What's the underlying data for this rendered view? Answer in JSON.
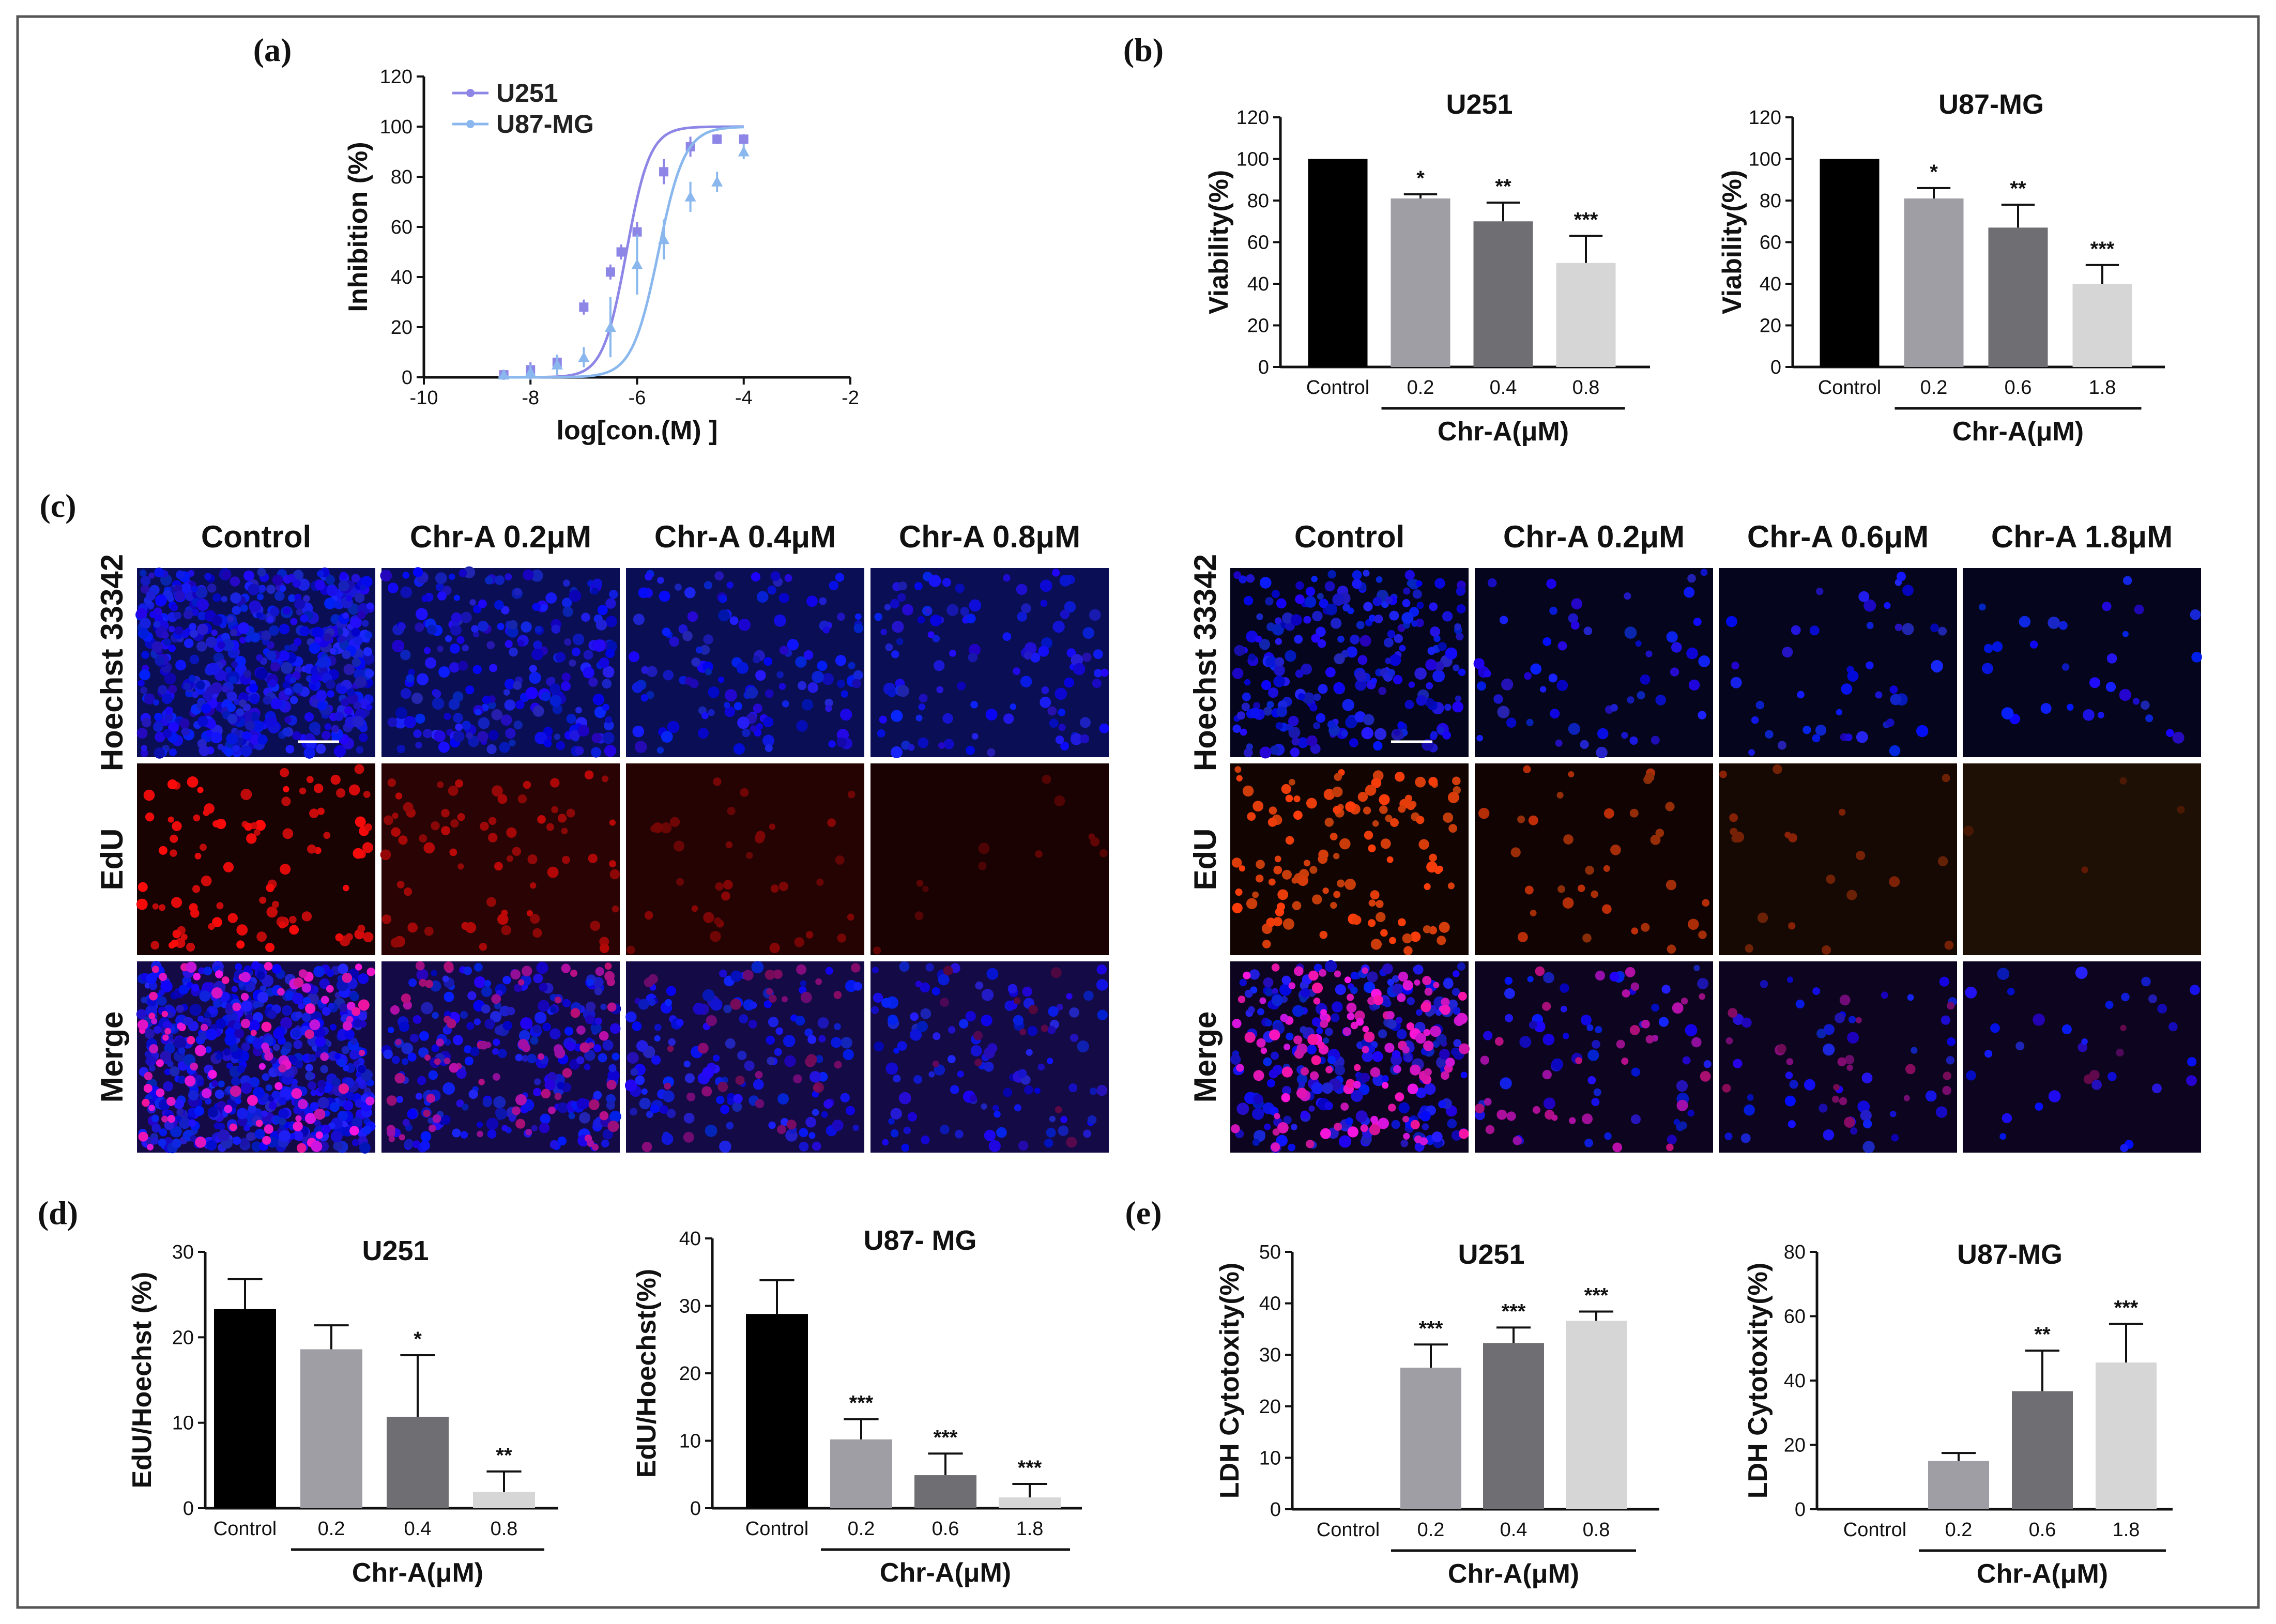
{
  "panel_labels": {
    "a": "(a)",
    "b": "(b)",
    "c": "(c)",
    "d": "(d)",
    "e": "(e)"
  },
  "colors": {
    "control": "#000000",
    "dose1": "#9e9ea4",
    "dose2": "#6f6f73",
    "dose3": "#d6d6d6",
    "u251_line": "#8e86e6",
    "u87_line": "#8ab8ee",
    "frame": "#444444"
  },
  "chart_data": [
    {
      "id": "a",
      "type": "line",
      "title": "",
      "xlabel": "log[con.(M) ]",
      "ylabel": "Inhibition (%)",
      "xlim": [
        -10,
        -2
      ],
      "ylim": [
        0,
        120
      ],
      "xticks": [
        -10,
        -8,
        -6,
        -4,
        -2
      ],
      "yticks": [
        0,
        20,
        40,
        60,
        80,
        100,
        120
      ],
      "series": [
        {
          "name": "U251",
          "color": "#8e86e6",
          "x": [
            -8.5,
            -8,
            -7.5,
            -7,
            -6.5,
            -6.3,
            -6,
            -5.5,
            -5,
            -4.5,
            -4
          ],
          "y": [
            1,
            3,
            6,
            28,
            42,
            50,
            58,
            82,
            92,
            95,
            95
          ],
          "err": [
            2,
            3,
            3,
            3,
            3,
            3,
            4,
            5,
            4,
            2,
            2
          ],
          "fit": {
            "ec50": -6.2,
            "hill": 0.9,
            "bottom": 0,
            "top": 100
          }
        },
        {
          "name": "U87-MG",
          "color": "#8ab8ee",
          "x": [
            -8.5,
            -8,
            -7.5,
            -7,
            -6.5,
            -6,
            -5.5,
            -5,
            -4.5,
            -4
          ],
          "y": [
            1,
            2,
            5,
            8,
            20,
            45,
            55,
            72,
            78,
            90
          ],
          "err": [
            2,
            3,
            4,
            4,
            12,
            12,
            8,
            6,
            4,
            3
          ],
          "fit": {
            "ec50": -5.6,
            "hill": 0.8,
            "bottom": 0,
            "top": 100
          }
        }
      ]
    },
    {
      "id": "b1",
      "type": "bar",
      "title": "U251",
      "ylabel": "Viability(%)",
      "ylim": [
        0,
        120
      ],
      "yticks": [
        0,
        20,
        40,
        60,
        80,
        100,
        120
      ],
      "categories": [
        "Control",
        "0.2",
        "0.4",
        "0.8"
      ],
      "group_label": "Chr-A(μM)",
      "values": [
        100,
        81,
        70,
        50
      ],
      "errors": [
        0,
        2,
        9,
        13
      ],
      "stars": [
        "",
        "*",
        "**",
        "***"
      ]
    },
    {
      "id": "b2",
      "type": "bar",
      "title": "U87-MG",
      "ylabel": "Viability(%)",
      "ylim": [
        0,
        120
      ],
      "yticks": [
        0,
        20,
        40,
        60,
        80,
        100,
        120
      ],
      "categories": [
        "Control",
        "0.2",
        "0.6",
        "1.8"
      ],
      "group_label": "Chr-A(μM)",
      "values": [
        100,
        81,
        67,
        40
      ],
      "errors": [
        0,
        5,
        11,
        9
      ],
      "stars": [
        "",
        "*",
        "**",
        "***"
      ]
    },
    {
      "id": "d1",
      "type": "bar",
      "title": "U251",
      "ylabel": "EdU/Hoechst (%)",
      "ylim": [
        0,
        30
      ],
      "yticks": [
        0,
        10,
        20,
        30
      ],
      "categories": [
        "Control",
        "0.2",
        "0.4",
        "0.8"
      ],
      "group_label": "Chr-A(μM)",
      "values": [
        23.3,
        18.6,
        10.7,
        1.9
      ],
      "errors": [
        3.5,
        2.8,
        7.2,
        2.4
      ],
      "stars": [
        "",
        "",
        "*",
        "**"
      ]
    },
    {
      "id": "d2",
      "type": "bar",
      "title": "U87- MG",
      "ylabel": "EdU/Hoechst(%)",
      "ylim": [
        0,
        40
      ],
      "yticks": [
        0,
        10,
        20,
        30,
        40
      ],
      "categories": [
        "Control",
        "0.2",
        "0.6",
        "1.8"
      ],
      "group_label": "Chr-A(μM)",
      "values": [
        28.8,
        10.2,
        4.9,
        1.6
      ],
      "errors": [
        5.0,
        3.0,
        3.2,
        2.0
      ],
      "stars": [
        "",
        "***",
        "***",
        "***"
      ]
    },
    {
      "id": "e1",
      "type": "bar",
      "title": "U251",
      "ylabel": "LDH Cytotoxity(%)",
      "ylim": [
        0,
        50
      ],
      "yticks": [
        0,
        10,
        20,
        30,
        40,
        50
      ],
      "categories": [
        "Control",
        "0.2",
        "0.4",
        "0.8"
      ],
      "group_label": "Chr-A(μM)",
      "values": [
        0,
        27.5,
        32.3,
        36.6
      ],
      "errors": [
        0,
        4.5,
        3.0,
        1.8
      ],
      "stars": [
        "",
        "***",
        "***",
        "***"
      ]
    },
    {
      "id": "e2",
      "type": "bar",
      "title": "U87-MG",
      "ylabel": "LDH Cytotoxity(%)",
      "ylim": [
        0,
        80
      ],
      "yticks": [
        0,
        20,
        40,
        60,
        80
      ],
      "categories": [
        "Control",
        "0.2",
        "0.6",
        "1.8"
      ],
      "group_label": "Chr-A(μM)",
      "values": [
        0,
        15,
        36.7,
        45.6
      ],
      "errors": [
        0,
        2.5,
        12.6,
        12.0
      ],
      "stars": [
        "",
        "",
        "**",
        "***"
      ]
    }
  ],
  "microscopy": {
    "left": {
      "columns": [
        "Control",
        "Chr-A 0.2μM",
        "Chr-A 0.4μM",
        "Chr-A 0.8μM"
      ],
      "rows": [
        "Hoechst 33342",
        "EdU",
        "Merge"
      ]
    },
    "right": {
      "columns": [
        "Control",
        "Chr-A 0.2μM",
        "Chr-A 0.6μM",
        "Chr-A 1.8μM"
      ],
      "rows": [
        "Hoechst 33342",
        "EdU",
        "Merge"
      ]
    }
  }
}
